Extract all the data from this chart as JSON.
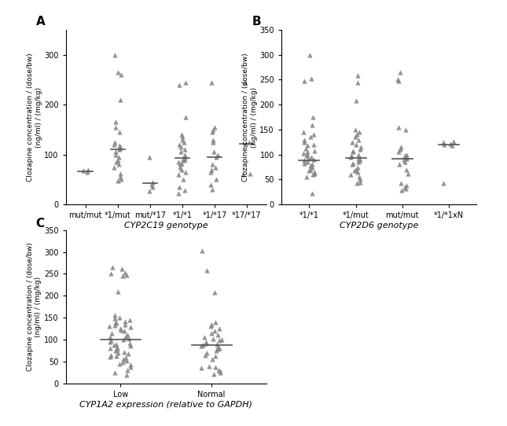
{
  "panel_A": {
    "label": "A",
    "xlabel": "CYP2C19 genotype",
    "ylabel": "Clozapine concentration / (dose/bw)\n(ng/ml) / (mg/kg)",
    "ylim": [
      0,
      350
    ],
    "yticks": [
      0,
      100,
      200,
      300
    ],
    "categories": [
      "mut/mut",
      "*1/mut",
      "mut/*17",
      "*1/*1",
      "*1/*17",
      "*17/*17"
    ],
    "medians": [
      67,
      110,
      42,
      93,
      95,
      122
    ],
    "data": {
      "mut/mut": [
        65,
        68,
        70
      ],
      "mut/*17": [
        27,
        35,
        40,
        44,
        95
      ],
      "*1/mut": [
        48,
        50,
        55,
        62,
        75,
        80,
        85,
        88,
        95,
        100,
        105,
        110,
        112,
        115,
        118,
        120,
        125,
        145,
        155,
        165,
        210,
        260,
        265,
        300
      ],
      "*1/*1": [
        22,
        28,
        35,
        50,
        60,
        65,
        70,
        75,
        80,
        82,
        85,
        88,
        90,
        92,
        95,
        100,
        105,
        110,
        115,
        120,
        125,
        130,
        135,
        140,
        175,
        240,
        245
      ],
      "*1/*17": [
        30,
        40,
        50,
        65,
        70,
        75,
        80,
        95,
        100,
        105,
        125,
        130,
        145,
        150,
        155,
        245
      ],
      "*17/*17": [
        60,
        62,
        120,
        122,
        125,
        245
      ]
    }
  },
  "panel_B": {
    "label": "B",
    "xlabel": "CYP2D6 genotype",
    "ylabel": "Clozapine concentration / (dose/bw)\n(ng/ml) / (mg/kg)",
    "ylim": [
      0,
      350
    ],
    "yticks": [
      0,
      50,
      100,
      150,
      200,
      250,
      300,
      350
    ],
    "categories": [
      "*1/*1",
      "*1/mut",
      "mut/mut",
      "*1/*1xN"
    ],
    "medians": [
      88,
      93,
      92,
      120
    ],
    "data": {
      "*1/*1": [
        22,
        55,
        60,
        62,
        65,
        68,
        70,
        75,
        78,
        80,
        82,
        85,
        88,
        90,
        92,
        95,
        98,
        100,
        103,
        105,
        108,
        112,
        118,
        120,
        125,
        130,
        135,
        140,
        145,
        160,
        175,
        248,
        252,
        300
      ],
      "*1/mut": [
        42,
        45,
        50,
        55,
        60,
        65,
        68,
        70,
        75,
        80,
        82,
        85,
        88,
        90,
        92,
        95,
        98,
        100,
        105,
        108,
        110,
        115,
        120,
        125,
        130,
        135,
        140,
        145,
        150,
        208,
        245,
        258
      ],
      "mut/mut": [
        28,
        32,
        35,
        38,
        42,
        62,
        70,
        80,
        85,
        90,
        92,
        95,
        98,
        100,
        105,
        110,
        115,
        150,
        155,
        248,
        250,
        265
      ],
      "*1/*1xN": [
        42,
        118,
        120,
        122,
        124,
        126
      ]
    }
  },
  "panel_C": {
    "label": "C",
    "xlabel": "CYP1A2 expression (relative to GAPDH)",
    "ylabel": "Clozapine concentration / (dose/bw)\n(ng/ml) / (mg/kg)",
    "ylim": [
      0,
      350
    ],
    "yticks": [
      0,
      50,
      100,
      150,
      200,
      250,
      300,
      350
    ],
    "categories": [
      "Low",
      "Normal"
    ],
    "medians": [
      100,
      88
    ],
    "data": {
      "Low": [
        20,
        25,
        30,
        38,
        42,
        45,
        48,
        52,
        55,
        58,
        60,
        62,
        65,
        68,
        70,
        72,
        75,
        78,
        80,
        82,
        85,
        88,
        90,
        92,
        95,
        98,
        100,
        102,
        105,
        108,
        110,
        115,
        120,
        122,
        125,
        128,
        130,
        132,
        135,
        138,
        140,
        142,
        145,
        148,
        150,
        155,
        210,
        245,
        248,
        250,
        252,
        262,
        265
      ],
      "Normal": [
        22,
        25,
        28,
        30,
        35,
        38,
        40,
        55,
        62,
        65,
        70,
        75,
        78,
        80,
        82,
        85,
        88,
        90,
        92,
        95,
        98,
        100,
        102,
        105,
        110,
        115,
        120,
        125,
        130,
        135,
        140,
        208,
        258,
        302
      ]
    }
  },
  "marker_color": "#888888",
  "marker_size": 4,
  "line_color": "#555555",
  "background_color": "#ffffff",
  "label_fontsize": 9,
  "tick_fontsize": 7,
  "xlabel_fontsize": 8,
  "ylabel_fontsize": 6.5
}
